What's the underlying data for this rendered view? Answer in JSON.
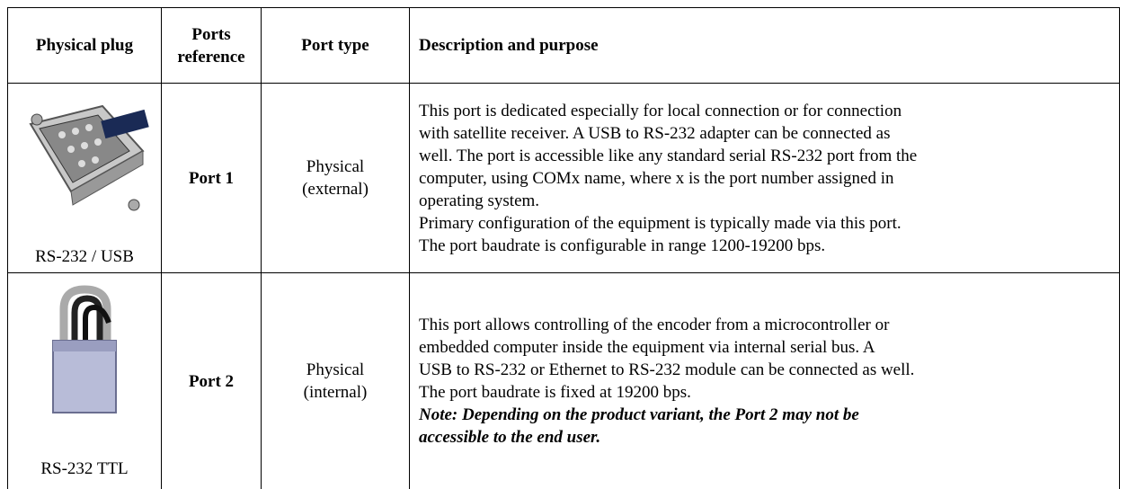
{
  "table": {
    "header": [
      "Physical plug",
      [
        "Ports",
        "reference"
      ],
      "Port type",
      "Description and purpose"
    ],
    "rows": [
      {
        "plug": "RS-232 / USB",
        "port": "Port 1",
        "type": [
          "Physical",
          "(external)"
        ],
        "description": [
          "This port is dedicated especially for local connection or for connection",
          "with satellite receiver. A USB to RS-232 adapter can be connected as",
          "well. The port is accessible like any standard serial RS-232 port from the",
          "computer, using COMx name, where x is the port number assigned in",
          "operating system.",
          "Primary configuration of the equipment is typically made via this port.",
          "The port baudrate is configurable in range 1200-19200 bps."
        ]
      },
      {
        "plug": "RS-232 TTL",
        "port": "Port 2",
        "type": [
          "Physical",
          "(internal)"
        ],
        "description": [
          "This port allows controlling of the encoder from a microcontroller or",
          "embedded computer inside the equipment via internal serial bus. A",
          "USB to RS-232 or Ethernet to RS-232 module can be connected as well.",
          "The port baudrate is fixed at 19200 bps."
        ],
        "note": [
          "Note: Depending on the product variant, the Port 2 may not be",
          "accessible to the end user."
        ]
      }
    ]
  }
}
